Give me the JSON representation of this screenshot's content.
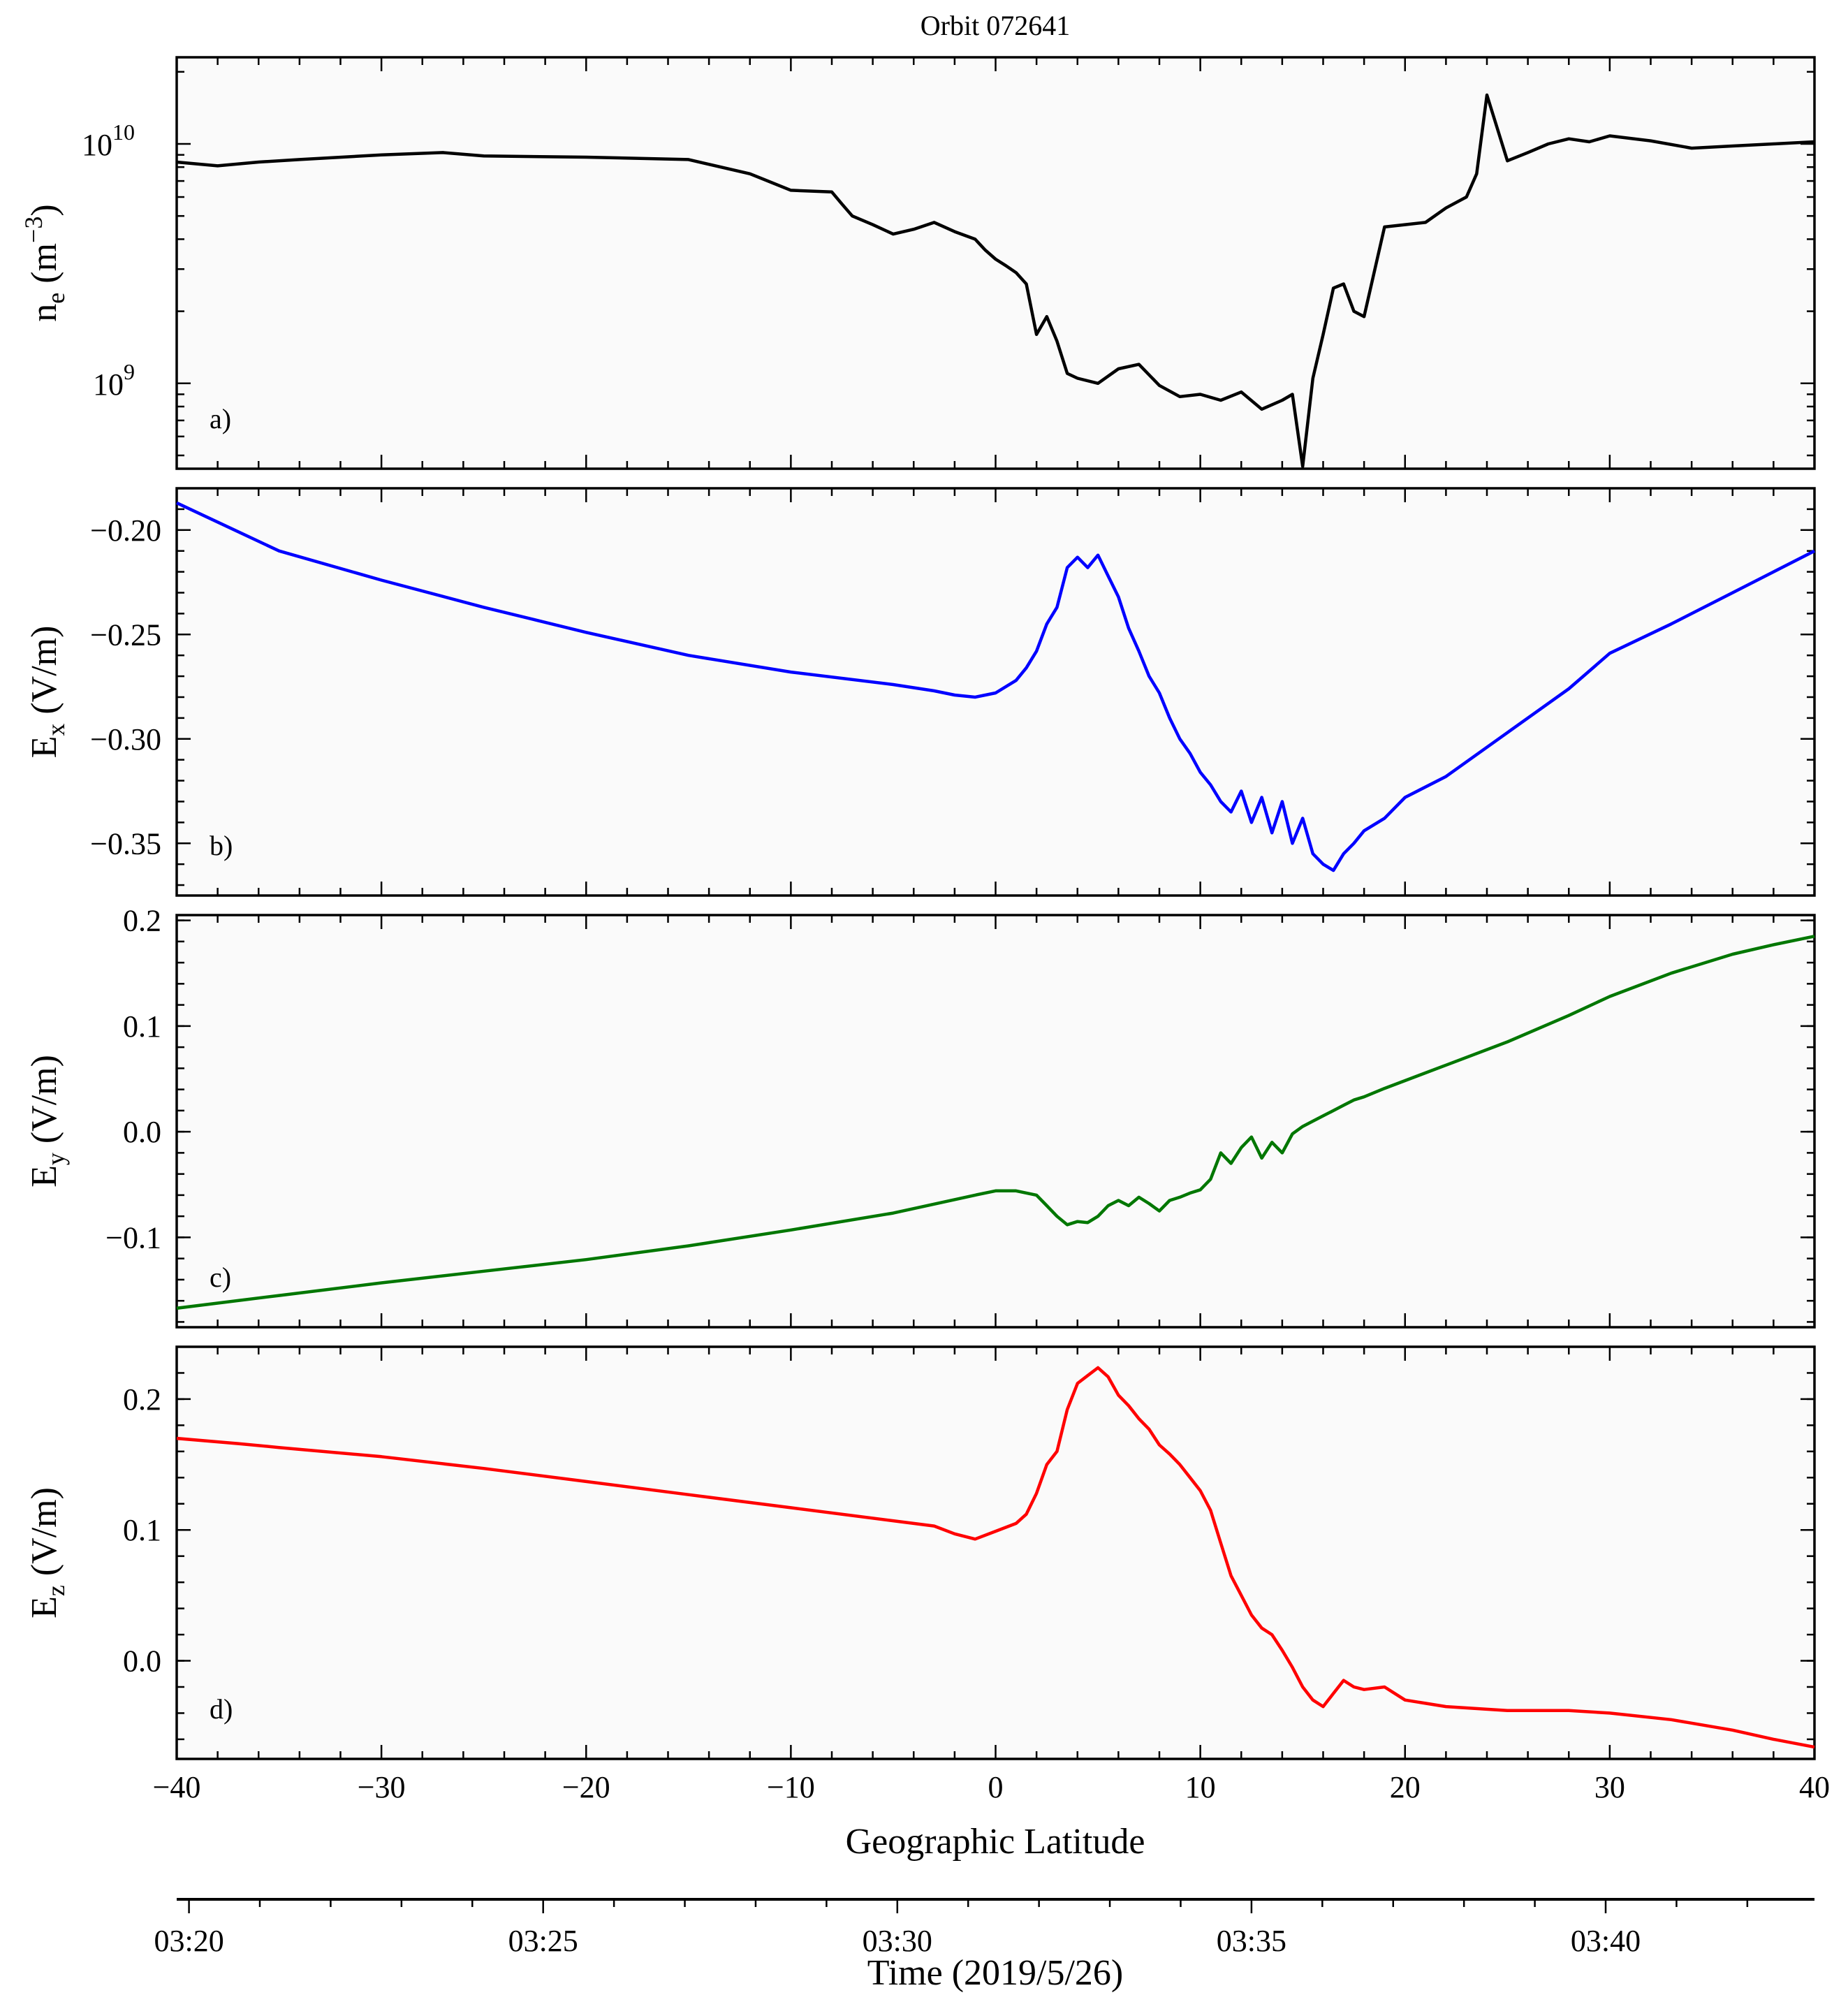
{
  "chart_data": {
    "type": "line",
    "title": "Orbit 072641",
    "xlabel": "Geographic Latitude",
    "xlim": [
      -40,
      40
    ],
    "xticks": [
      -40,
      -30,
      -20,
      -10,
      0,
      10,
      20,
      30,
      40
    ],
    "xtick_labels": [
      "−40",
      "−30",
      "−20",
      "−10",
      "0",
      "10",
      "20",
      "30",
      "40"
    ],
    "time_axis": {
      "label": "Time (2019/5/26)",
      "tick_labels": [
        "03:20",
        "03:25",
        "03:30",
        "03:35",
        "03:40"
      ],
      "tick_latitudes": [
        -39.4,
        -22.1,
        -4.8,
        12.5,
        29.8
      ]
    },
    "panels": [
      {
        "tag": "a)",
        "ylabel_main": "n",
        "ylabel_sub": "e",
        "ylabel_unit_open": "  (m",
        "ylabel_unit_sup": "−3",
        "ylabel_unit_close": ")",
        "yscale": "log",
        "ylim": [
          440000000.0,
          23000000000.0
        ],
        "yticks": [
          1000000000.0,
          10000000000.0
        ],
        "ytick_label_base": "10",
        "ytick_label_exps": [
          "9",
          "10"
        ],
        "color": "#000000",
        "series": [
          {
            "name": "n_e",
            "x": [
              -40,
              -38,
              -36,
              -34,
              -30,
              -27,
              -25,
              -20,
              -15,
              -12,
              -10,
              -8,
              -7.5,
              -7,
              -6,
              -5,
              -4,
              -3,
              -2,
              -1,
              -0.5,
              0,
              0.5,
              1,
              1.5,
              2,
              2.5,
              3,
              3.5,
              4,
              5,
              6,
              7,
              8,
              9,
              10,
              11,
              12,
              13,
              14,
              14.5,
              15,
              15.5,
              16,
              16.5,
              17,
              17.5,
              18,
              19,
              20,
              21,
              22,
              23,
              23.5,
              24,
              25,
              26,
              27,
              28,
              29,
              30,
              32,
              34,
              36,
              38,
              40
            ],
            "y": [
              8400000000.0,
              8100000000.0,
              8400000000.0,
              8600000000.0,
              9000000000.0,
              9200000000.0,
              8900000000.0,
              8800000000.0,
              8600000000.0,
              7500000000.0,
              6400000000.0,
              6300000000.0,
              5600000000.0,
              5000000000.0,
              4600000000.0,
              4200000000.0,
              4400000000.0,
              4700000000.0,
              4300000000.0,
              4000000000.0,
              3600000000.0,
              3300000000.0,
              3100000000.0,
              2900000000.0,
              2600000000.0,
              1600000000.0,
              1900000000.0,
              1500000000.0,
              1100000000.0,
              1050000000.0,
              1000000000.0,
              1150000000.0,
              1200000000.0,
              980000000.0,
              880000000.0,
              900000000.0,
              850000000.0,
              920000000.0,
              780000000.0,
              850000000.0,
              900000000.0,
              450000000.0,
              1050000000.0,
              1600000000.0,
              2500000000.0,
              2600000000.0,
              2000000000.0,
              1900000000.0,
              4500000000.0,
              4600000000.0,
              4700000000.0,
              5400000000.0,
              6000000000.0,
              7500000000.0,
              16000000000.0,
              8500000000.0,
              9200000000.0,
              10000000000.0,
              10500000000.0,
              10200000000.0,
              10800000000.0,
              10300000000.0,
              9600000000.0,
              9800000000.0,
              10000000000.0,
              10200000000.0
            ]
          }
        ]
      },
      {
        "tag": "b)",
        "ylabel_main": "E",
        "ylabel_sub": "x",
        "ylabel_unit": " (V/m)",
        "yscale": "linear",
        "ylim": [
          -0.375,
          -0.18
        ],
        "yticks": [
          -0.2,
          -0.25,
          -0.3,
          -0.35
        ],
        "ytick_labels": [
          "−0.20",
          "−0.25",
          "−0.30",
          "−0.35"
        ],
        "color": "#0000ff",
        "series": [
          {
            "name": "Ex",
            "x": [
              -40,
              -35,
              -30,
              -25,
              -20,
              -15,
              -10,
              -5,
              -3,
              -2,
              -1,
              0,
              1,
              1.5,
              2,
              2.5,
              3,
              3.5,
              4,
              4.5,
              5,
              5.5,
              6,
              6.5,
              7,
              7.5,
              8,
              8.5,
              9,
              9.5,
              10,
              10.5,
              11,
              11.5,
              12,
              12.5,
              13,
              13.5,
              14,
              14.5,
              15,
              15.5,
              16,
              16.5,
              17,
              17.5,
              18,
              19,
              20,
              22,
              25,
              28,
              30,
              33,
              36,
              38,
              40
            ],
            "y": [
              -0.187,
              -0.21,
              -0.224,
              -0.237,
              -0.249,
              -0.26,
              -0.268,
              -0.274,
              -0.277,
              -0.279,
              -0.28,
              -0.278,
              -0.272,
              -0.266,
              -0.258,
              -0.245,
              -0.237,
              -0.218,
              -0.213,
              -0.218,
              -0.212,
              -0.222,
              -0.232,
              -0.247,
              -0.258,
              -0.27,
              -0.278,
              -0.29,
              -0.3,
              -0.307,
              -0.316,
              -0.322,
              -0.33,
              -0.335,
              -0.325,
              -0.34,
              -0.328,
              -0.345,
              -0.33,
              -0.35,
              -0.338,
              -0.355,
              -0.36,
              -0.363,
              -0.355,
              -0.35,
              -0.344,
              -0.338,
              -0.328,
              -0.318,
              -0.297,
              -0.276,
              -0.259,
              -0.245,
              -0.23,
              -0.22,
              -0.21
            ]
          }
        ]
      },
      {
        "tag": "c)",
        "ylabel_main": "E",
        "ylabel_sub": "y",
        "ylabel_unit": " (V/m)",
        "yscale": "linear",
        "ylim": [
          -0.185,
          0.205
        ],
        "yticks": [
          -0.1,
          0.0,
          0.1,
          0.2
        ],
        "ytick_labels": [
          "−0.1",
          "0.0",
          "0.1",
          "0.2"
        ],
        "color": "#007700",
        "series": [
          {
            "name": "Ey",
            "x": [
              -40,
              -35,
              -30,
              -25,
              -20,
              -15,
              -10,
              -5,
              -1,
              0,
              1,
              2,
              2.5,
              3,
              3.5,
              4,
              4.5,
              5,
              5.5,
              6,
              6.5,
              7,
              7.5,
              8,
              8.5,
              9,
              9.5,
              10,
              10.5,
              11,
              11.5,
              12,
              12.5,
              13,
              13.5,
              14,
              14.5,
              15,
              15.5,
              16,
              16.5,
              17,
              17.5,
              18,
              19,
              22,
              25,
              28,
              30,
              33,
              36,
              38,
              40
            ],
            "y": [
              -0.167,
              -0.155,
              -0.143,
              -0.132,
              -0.121,
              -0.108,
              -0.093,
              -0.077,
              -0.06,
              -0.056,
              -0.056,
              -0.06,
              -0.07,
              -0.08,
              -0.088,
              -0.085,
              -0.086,
              -0.08,
              -0.07,
              -0.065,
              -0.07,
              -0.062,
              -0.068,
              -0.075,
              -0.065,
              -0.062,
              -0.058,
              -0.055,
              -0.045,
              -0.02,
              -0.03,
              -0.015,
              -0.005,
              -0.025,
              -0.01,
              -0.02,
              -0.002,
              0.005,
              0.01,
              0.015,
              0.02,
              0.025,
              0.03,
              0.033,
              0.041,
              0.063,
              0.085,
              0.11,
              0.128,
              0.15,
              0.168,
              0.177,
              0.185
            ]
          }
        ]
      },
      {
        "tag": "d)",
        "ylabel_main": "E",
        "ylabel_sub": "z",
        "ylabel_unit": " (V/m)",
        "yscale": "linear",
        "ylim": [
          -0.075,
          0.24
        ],
        "yticks": [
          0.0,
          0.1,
          0.2
        ],
        "ytick_labels": [
          "0.0",
          "0.1",
          "0.2"
        ],
        "color": "#ff0000",
        "series": [
          {
            "name": "Ez",
            "x": [
              -40,
              -37,
              -35,
              -30,
              -25,
              -20,
              -15,
              -10,
              -5,
              -3,
              -2,
              -1,
              0,
              1,
              1.5,
              2,
              2.5,
              3,
              3.5,
              4,
              4.5,
              5,
              5.5,
              6,
              6.5,
              7,
              7.5,
              8,
              8.5,
              9,
              9.5,
              10,
              10.5,
              11,
              11.5,
              12,
              12.5,
              13,
              13.5,
              14,
              14.5,
              15,
              15.5,
              16,
              16.5,
              17,
              17.5,
              18,
              19,
              20,
              22,
              25,
              28,
              30,
              33,
              36,
              38,
              40
            ],
            "y": [
              0.17,
              0.166,
              0.163,
              0.156,
              0.147,
              0.137,
              0.127,
              0.117,
              0.107,
              0.103,
              0.097,
              0.093,
              0.099,
              0.105,
              0.112,
              0.128,
              0.15,
              0.16,
              0.192,
              0.212,
              0.218,
              0.224,
              0.217,
              0.203,
              0.195,
              0.185,
              0.177,
              0.165,
              0.158,
              0.15,
              0.14,
              0.13,
              0.115,
              0.09,
              0.065,
              0.05,
              0.035,
              0.025,
              0.02,
              0.008,
              -0.005,
              -0.02,
              -0.03,
              -0.035,
              -0.025,
              -0.015,
              -0.02,
              -0.022,
              -0.02,
              -0.03,
              -0.035,
              -0.038,
              -0.038,
              -0.04,
              -0.045,
              -0.053,
              -0.06,
              -0.066
            ]
          }
        ]
      }
    ]
  }
}
